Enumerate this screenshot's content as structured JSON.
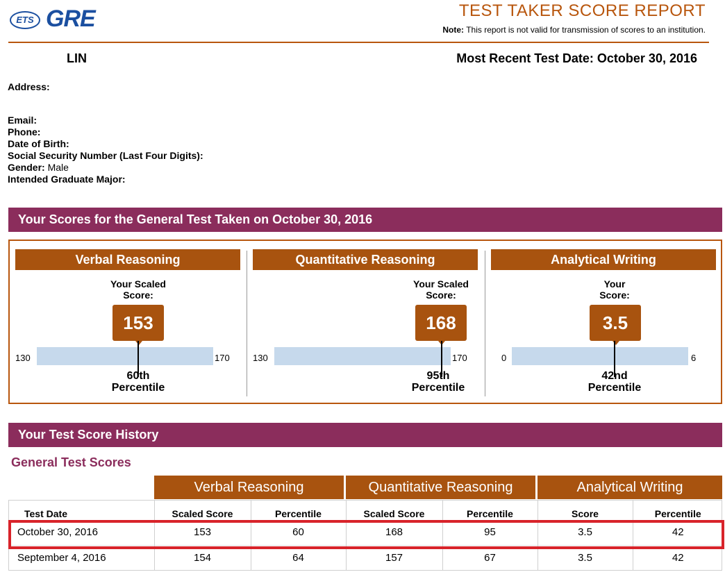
{
  "header": {
    "logo_ets": "ETS",
    "logo_gre": "GRE",
    "title": "TEST TAKER SCORE REPORT",
    "note_label": "Note:",
    "note_text": "This report is not valid for transmission of scores to an institution."
  },
  "candidate": {
    "name": "LIN",
    "recent_date_label": "Most Recent Test Date: October 30, 2016"
  },
  "info": {
    "address_label": "Address:",
    "email_label": "Email:",
    "phone_label": "Phone:",
    "dob_label": "Date of Birth:",
    "ssn_label": "Social Security Number (Last Four Digits):",
    "gender_label": "Gender:",
    "gender_value": "Male",
    "major_label": "Intended Graduate Major:"
  },
  "scores_section": {
    "title": "Your Scores for the General Test Taken on October 30, 2016",
    "measures": [
      {
        "name": "Verbal Reasoning",
        "caption_line1": "Your Scaled",
        "caption_line2": "Score:",
        "score": "153",
        "min": "130",
        "max": "170",
        "fraction": 0.575,
        "percentile_line1": "60th",
        "percentile_line2": "Percentile"
      },
      {
        "name": "Quantitative Reasoning",
        "caption_line1": "Your Scaled",
        "caption_line2": "Score:",
        "score": "168",
        "min": "130",
        "max": "170",
        "fraction": 0.95,
        "percentile_line1": "95th",
        "percentile_line2": "Percentile"
      },
      {
        "name": "Analytical Writing",
        "caption_line1": "Your",
        "caption_line2": "Score:",
        "score": "3.5",
        "min": "0",
        "max": "6",
        "fraction": 0.583,
        "percentile_line1": "42nd",
        "percentile_line2": "Percentile"
      }
    ]
  },
  "history": {
    "title": "Your Test Score History",
    "subtitle": "General Test Scores",
    "groups": [
      "Verbal Reasoning",
      "Quantitative Reasoning",
      "Analytical Writing"
    ],
    "columns": [
      "Test Date",
      "Scaled Score",
      "Percentile",
      "Scaled Score",
      "Percentile",
      "Score",
      "Percentile"
    ],
    "rows": [
      [
        "October 30, 2016",
        "153",
        "60",
        "168",
        "95",
        "3.5",
        "42"
      ],
      [
        "September 4, 2016",
        "154",
        "64",
        "157",
        "67",
        "3.5",
        "42"
      ]
    ]
  },
  "colors": {
    "accent_orange": "#b8560d",
    "header_bar": "#8b2d5c",
    "measure_head": "#a8530f",
    "bar_track": "#c6d9ec",
    "highlight": "#d8232a",
    "logo_blue": "#1b4fa0"
  }
}
